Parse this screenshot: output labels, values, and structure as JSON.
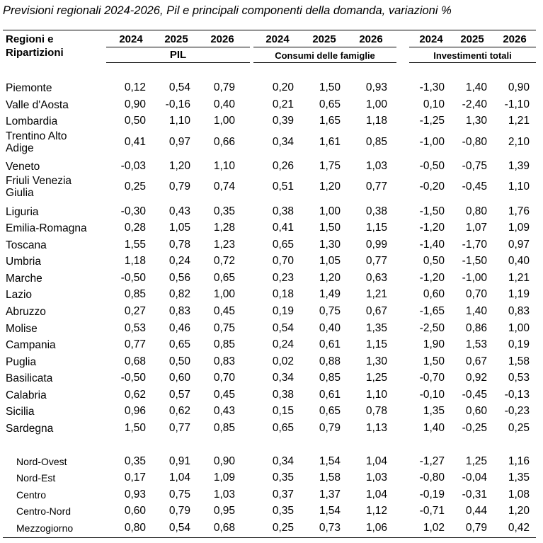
{
  "title": "Previsioni regionali 2024-2026, Pil e principali componenti della domanda, variazioni %",
  "table": {
    "row_header": [
      "Regioni e",
      "Ripartizioni"
    ],
    "groups": [
      {
        "label": "PIL",
        "years": [
          "2024",
          "2025",
          "2026"
        ]
      },
      {
        "label": "Consumi delle famiglie",
        "years": [
          "2024",
          "2025",
          "2026"
        ]
      },
      {
        "label": "Investimenti totali",
        "years": [
          "2024",
          "2025",
          "2026"
        ]
      }
    ],
    "regions": [
      {
        "label": [
          "Piemonte"
        ],
        "values": [
          "0,12",
          "0,54",
          "0,79",
          "0,20",
          "1,50",
          "0,93",
          "-1,30",
          "1,40",
          "0,90"
        ]
      },
      {
        "label": [
          "Valle d'Aosta"
        ],
        "values": [
          "0,90",
          "-0,16",
          "0,40",
          "0,21",
          "0,65",
          "1,00",
          "0,10",
          "-2,40",
          "-1,10"
        ]
      },
      {
        "label": [
          "Lombardia"
        ],
        "values": [
          "0,50",
          "1,10",
          "1,00",
          "0,39",
          "1,65",
          "1,18",
          "-1,25",
          "1,30",
          "1,21"
        ]
      },
      {
        "label": [
          "Trentino Alto",
          "Adige"
        ],
        "values": [
          "0,41",
          "0,97",
          "0,66",
          "0,34",
          "1,61",
          "0,85",
          "-1,00",
          "-0,80",
          "2,10"
        ]
      },
      {
        "label": [
          "Veneto"
        ],
        "values": [
          "-0,03",
          "1,20",
          "1,10",
          "0,26",
          "1,75",
          "1,03",
          "-0,50",
          "-0,75",
          "1,39"
        ]
      },
      {
        "label": [
          "Friuli  Venezia",
          "Giulia"
        ],
        "values": [
          "0,25",
          "0,79",
          "0,74",
          "0,51",
          "1,20",
          "0,77",
          "-0,20",
          "-0,45",
          "1,10"
        ]
      },
      {
        "label": [
          "Liguria"
        ],
        "values": [
          "-0,30",
          "0,43",
          "0,35",
          "0,38",
          "1,00",
          "0,38",
          "-1,50",
          "0,80",
          "1,76"
        ]
      },
      {
        "label": [
          "Emilia-Romagna"
        ],
        "values": [
          "0,28",
          "1,05",
          "1,28",
          "0,41",
          "1,50",
          "1,15",
          "-1,20",
          "1,07",
          "1,09"
        ]
      },
      {
        "label": [
          "Toscana"
        ],
        "values": [
          "1,55",
          "0,78",
          "1,23",
          "0,65",
          "1,30",
          "0,99",
          "-1,40",
          "-1,70",
          "0,97"
        ]
      },
      {
        "label": [
          "Umbria"
        ],
        "values": [
          "1,18",
          "0,24",
          "0,72",
          "0,70",
          "1,05",
          "0,77",
          "0,50",
          "-1,50",
          "0,40"
        ]
      },
      {
        "label": [
          "Marche"
        ],
        "values": [
          "-0,50",
          "0,56",
          "0,65",
          "0,23",
          "1,20",
          "0,63",
          "-1,20",
          "-1,00",
          "1,21"
        ]
      },
      {
        "label": [
          "Lazio"
        ],
        "values": [
          "0,85",
          "0,82",
          "1,00",
          "0,18",
          "1,49",
          "1,21",
          "0,60",
          "0,70",
          "1,19"
        ]
      },
      {
        "label": [
          "Abruzzo"
        ],
        "values": [
          "0,27",
          "0,83",
          "0,45",
          "0,19",
          "0,75",
          "0,67",
          "-1,65",
          "1,40",
          "0,83"
        ]
      },
      {
        "label": [
          "Molise"
        ],
        "values": [
          "0,53",
          "0,46",
          "0,75",
          "0,54",
          "0,40",
          "1,35",
          "-2,50",
          "0,86",
          "1,00"
        ]
      },
      {
        "label": [
          "Campania"
        ],
        "values": [
          "0,77",
          "0,65",
          "0,85",
          "0,24",
          "0,61",
          "1,15",
          "1,90",
          "1,53",
          "0,19"
        ]
      },
      {
        "label": [
          "Puglia"
        ],
        "values": [
          "0,68",
          "0,50",
          "0,83",
          "0,02",
          "0,88",
          "1,30",
          "1,50",
          "0,67",
          "1,58"
        ]
      },
      {
        "label": [
          "Basilicata"
        ],
        "values": [
          "-0,50",
          "0,60",
          "0,70",
          "0,34",
          "0,85",
          "1,25",
          "-0,70",
          "0,92",
          "0,53"
        ]
      },
      {
        "label": [
          "Calabria"
        ],
        "values": [
          "0,62",
          "0,57",
          "0,45",
          "0,38",
          "0,61",
          "1,10",
          "-0,10",
          "-0,45",
          "-0,13"
        ]
      },
      {
        "label": [
          "Sicilia"
        ],
        "values": [
          "0,96",
          "0,62",
          "0,43",
          "0,15",
          "0,65",
          "0,78",
          "1,35",
          "0,60",
          "-0,23"
        ]
      },
      {
        "label": [
          "Sardegna"
        ],
        "values": [
          "1,50",
          "0,77",
          "0,85",
          "0,65",
          "0,79",
          "1,13",
          "1,40",
          "-0,25",
          "0,25"
        ]
      }
    ],
    "aggregates": [
      {
        "label": [
          "Nord-Ovest"
        ],
        "values": [
          "0,35",
          "0,91",
          "0,90",
          "0,34",
          "1,54",
          "1,04",
          "-1,27",
          "1,25",
          "1,16"
        ]
      },
      {
        "label": [
          "Nord-Est"
        ],
        "values": [
          "0,17",
          "1,04",
          "1,09",
          "0,35",
          "1,58",
          "1,03",
          "-0,80",
          "-0,04",
          "1,35"
        ]
      },
      {
        "label": [
          "Centro"
        ],
        "values": [
          "0,93",
          "0,75",
          "1,03",
          "0,37",
          "1,37",
          "1,04",
          "-0,19",
          "-0,31",
          "1,08"
        ]
      },
      {
        "label": [
          "Centro-Nord"
        ],
        "values": [
          "0,60",
          "0,79",
          "0,95",
          "0,35",
          "1,54",
          "1,12",
          "-0,71",
          "0,44",
          "1,20"
        ]
      },
      {
        "label": [
          "Mezzogiorno"
        ],
        "values": [
          "0,80",
          "0,54",
          "0,68",
          "0,25",
          "0,73",
          "1,06",
          "1,02",
          "0,79",
          "0,42"
        ]
      }
    ]
  },
  "chart_data": {
    "type": "table",
    "title": "Previsioni regionali 2024-2026, Pil e principali componenti della domanda, variazioni %",
    "columns": [
      "PIL 2024",
      "PIL 2025",
      "PIL 2026",
      "Consumi delle famiglie 2024",
      "Consumi delle famiglie 2025",
      "Consumi delle famiglie 2026",
      "Investimenti totali 2024",
      "Investimenti totali 2025",
      "Investimenti totali 2026"
    ],
    "rows": [
      {
        "name": "Piemonte",
        "values": [
          0.12,
          0.54,
          0.79,
          0.2,
          1.5,
          0.93,
          -1.3,
          1.4,
          0.9
        ]
      },
      {
        "name": "Valle d'Aosta",
        "values": [
          0.9,
          -0.16,
          0.4,
          0.21,
          0.65,
          1.0,
          0.1,
          -2.4,
          -1.1
        ]
      },
      {
        "name": "Lombardia",
        "values": [
          0.5,
          1.1,
          1.0,
          0.39,
          1.65,
          1.18,
          -1.25,
          1.3,
          1.21
        ]
      },
      {
        "name": "Trentino Alto Adige",
        "values": [
          0.41,
          0.97,
          0.66,
          0.34,
          1.61,
          0.85,
          -1.0,
          -0.8,
          2.1
        ]
      },
      {
        "name": "Veneto",
        "values": [
          -0.03,
          1.2,
          1.1,
          0.26,
          1.75,
          1.03,
          -0.5,
          -0.75,
          1.39
        ]
      },
      {
        "name": "Friuli Venezia Giulia",
        "values": [
          0.25,
          0.79,
          0.74,
          0.51,
          1.2,
          0.77,
          -0.2,
          -0.45,
          1.1
        ]
      },
      {
        "name": "Liguria",
        "values": [
          -0.3,
          0.43,
          0.35,
          0.38,
          1.0,
          0.38,
          -1.5,
          0.8,
          1.76
        ]
      },
      {
        "name": "Emilia-Romagna",
        "values": [
          0.28,
          1.05,
          1.28,
          0.41,
          1.5,
          1.15,
          -1.2,
          1.07,
          1.09
        ]
      },
      {
        "name": "Toscana",
        "values": [
          1.55,
          0.78,
          1.23,
          0.65,
          1.3,
          0.99,
          -1.4,
          -1.7,
          0.97
        ]
      },
      {
        "name": "Umbria",
        "values": [
          1.18,
          0.24,
          0.72,
          0.7,
          1.05,
          0.77,
          0.5,
          -1.5,
          0.4
        ]
      },
      {
        "name": "Marche",
        "values": [
          -0.5,
          0.56,
          0.65,
          0.23,
          1.2,
          0.63,
          -1.2,
          -1.0,
          1.21
        ]
      },
      {
        "name": "Lazio",
        "values": [
          0.85,
          0.82,
          1.0,
          0.18,
          1.49,
          1.21,
          0.6,
          0.7,
          1.19
        ]
      },
      {
        "name": "Abruzzo",
        "values": [
          0.27,
          0.83,
          0.45,
          0.19,
          0.75,
          0.67,
          -1.65,
          1.4,
          0.83
        ]
      },
      {
        "name": "Molise",
        "values": [
          0.53,
          0.46,
          0.75,
          0.54,
          0.4,
          1.35,
          -2.5,
          0.86,
          1.0
        ]
      },
      {
        "name": "Campania",
        "values": [
          0.77,
          0.65,
          0.85,
          0.24,
          0.61,
          1.15,
          1.9,
          1.53,
          0.19
        ]
      },
      {
        "name": "Puglia",
        "values": [
          0.68,
          0.5,
          0.83,
          0.02,
          0.88,
          1.3,
          1.5,
          0.67,
          1.58
        ]
      },
      {
        "name": "Basilicata",
        "values": [
          -0.5,
          0.6,
          0.7,
          0.34,
          0.85,
          1.25,
          -0.7,
          0.92,
          0.53
        ]
      },
      {
        "name": "Calabria",
        "values": [
          0.62,
          0.57,
          0.45,
          0.38,
          0.61,
          1.1,
          -0.1,
          -0.45,
          -0.13
        ]
      },
      {
        "name": "Sicilia",
        "values": [
          0.96,
          0.62,
          0.43,
          0.15,
          0.65,
          0.78,
          1.35,
          0.6,
          -0.23
        ]
      },
      {
        "name": "Sardegna",
        "values": [
          1.5,
          0.77,
          0.85,
          0.65,
          0.79,
          1.13,
          1.4,
          -0.25,
          0.25
        ]
      },
      {
        "name": "Nord-Ovest",
        "values": [
          0.35,
          0.91,
          0.9,
          0.34,
          1.54,
          1.04,
          -1.27,
          1.25,
          1.16
        ]
      },
      {
        "name": "Nord-Est",
        "values": [
          0.17,
          1.04,
          1.09,
          0.35,
          1.58,
          1.03,
          -0.8,
          -0.04,
          1.35
        ]
      },
      {
        "name": "Centro",
        "values": [
          0.93,
          0.75,
          1.03,
          0.37,
          1.37,
          1.04,
          -0.19,
          -0.31,
          1.08
        ]
      },
      {
        "name": "Centro-Nord",
        "values": [
          0.6,
          0.79,
          0.95,
          0.35,
          1.54,
          1.12,
          -0.71,
          0.44,
          1.2
        ]
      },
      {
        "name": "Mezzogiorno",
        "values": [
          0.8,
          0.54,
          0.68,
          0.25,
          0.73,
          1.06,
          1.02,
          0.79,
          0.42
        ]
      }
    ]
  }
}
